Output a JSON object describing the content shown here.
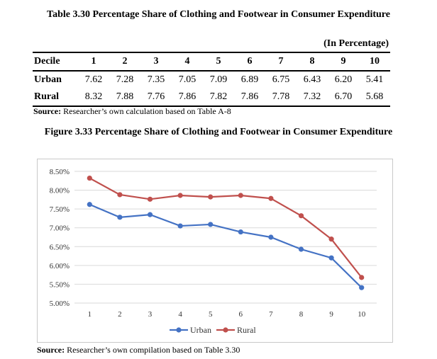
{
  "table": {
    "title": "Table 3.30 Percentage Share of Clothing and Footwear in Consumer Expenditure",
    "unit_note": "(In Percentage)",
    "header_label": "Decile",
    "columns": [
      "1",
      "2",
      "3",
      "4",
      "5",
      "6",
      "7",
      "8",
      "9",
      "10"
    ],
    "rows": [
      {
        "label": "Urban",
        "values": [
          "7.62",
          "7.28",
          "7.35",
          "7.05",
          "7.09",
          "6.89",
          "6.75",
          "6.43",
          "6.20",
          "5.41"
        ]
      },
      {
        "label": "Rural",
        "values": [
          "8.32",
          "7.88",
          "7.76",
          "7.86",
          "7.82",
          "7.86",
          "7.78",
          "7.32",
          "6.70",
          "5.68"
        ]
      }
    ],
    "source_label": "Source:",
    "source_text": "Researcher’s own calculation based on Table A-8"
  },
  "figure": {
    "title": "Figure 3.33 Percentage Share of Clothing and Footwear in Consumer Expenditure",
    "source_label": "Source:",
    "source_text": "Researcher’s own compilation based on Table 3.30"
  },
  "chart_data": {
    "type": "line",
    "title": "",
    "xlabel": "",
    "ylabel": "",
    "categories": [
      "1",
      "2",
      "3",
      "4",
      "5",
      "6",
      "7",
      "8",
      "9",
      "10"
    ],
    "series": [
      {
        "name": "Urban",
        "color": "#4472C4",
        "values": [
          7.62,
          7.28,
          7.35,
          7.05,
          7.09,
          6.89,
          6.75,
          6.43,
          6.2,
          5.41
        ]
      },
      {
        "name": "Rural",
        "color": "#C0504D",
        "values": [
          8.32,
          7.88,
          7.76,
          7.86,
          7.82,
          7.86,
          7.78,
          7.32,
          6.7,
          5.68
        ]
      }
    ],
    "ylim": [
      5.0,
      8.5
    ],
    "yticks": [
      "5.00%",
      "5.50%",
      "6.00%",
      "6.50%",
      "7.00%",
      "7.50%",
      "8.00%",
      "8.50%"
    ],
    "ytick_values": [
      5.0,
      5.5,
      6.0,
      6.5,
      7.0,
      7.5,
      8.0,
      8.5
    ],
    "grid": true,
    "legend_position": "bottom",
    "grid_color": "#d9d9d9"
  }
}
